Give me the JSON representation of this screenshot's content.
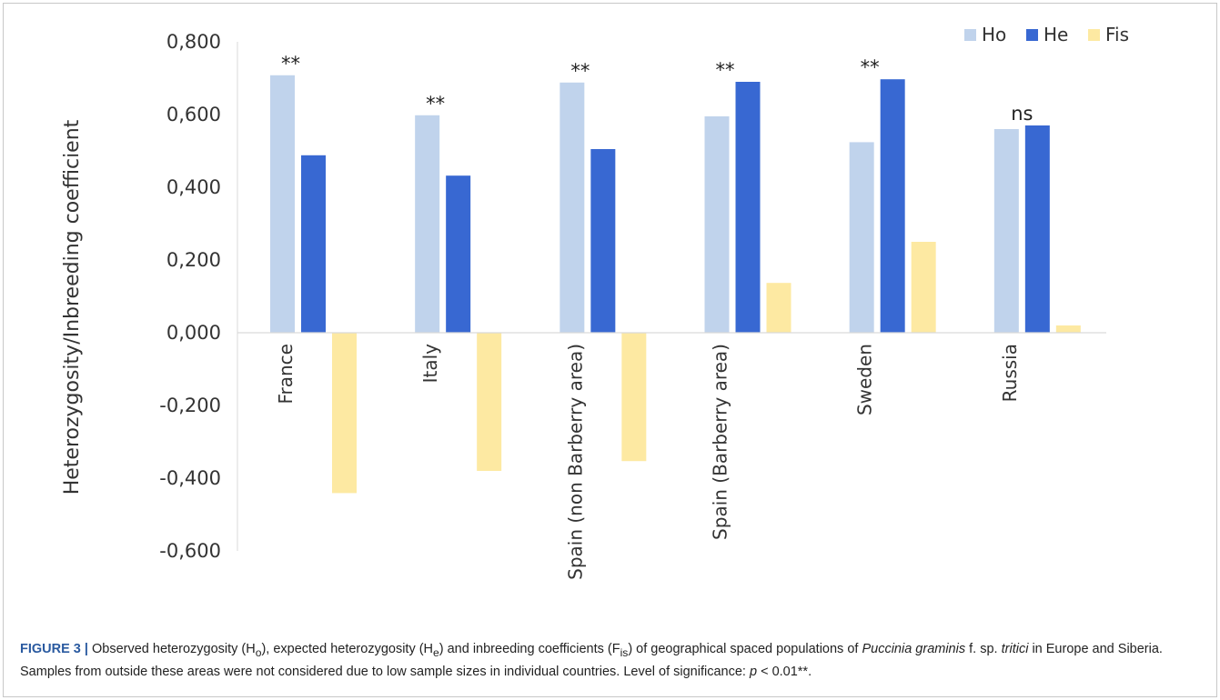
{
  "chart_data": {
    "type": "bar",
    "ylabel": "Heterozygosity/Inbreeding coefficient",
    "xlabel": "",
    "ylim": [
      -0.6,
      0.8
    ],
    "y_ticks": [
      0.8,
      0.6,
      0.4,
      0.2,
      0.0,
      -0.2,
      -0.4,
      -0.6
    ],
    "y_tick_labels": [
      "0,800",
      "0,600",
      "0,400",
      "0,200",
      "0,000",
      "-0,200",
      "-0,400",
      "-0,600"
    ],
    "grid": false,
    "legend_position": "top-right",
    "categories": [
      "France",
      "Italy",
      "Spain (non Barberry area)",
      "Spain (Barberry area)",
      "Sweden",
      "Russia"
    ],
    "series": [
      {
        "name": "Ho",
        "color": "#c0d3ec",
        "values": [
          0.708,
          0.598,
          0.688,
          0.595,
          0.524,
          0.56
        ]
      },
      {
        "name": "He",
        "color": "#3868d2",
        "values": [
          0.488,
          0.432,
          0.505,
          0.69,
          0.697,
          0.57
        ]
      },
      {
        "name": "Fis",
        "color": "#fde9a2",
        "values": [
          -0.441,
          -0.38,
          -0.353,
          0.137,
          0.25,
          0.02
        ]
      }
    ],
    "annotations": [
      "**",
      "**",
      "**",
      "**",
      "**",
      "ns"
    ]
  },
  "caption": {
    "label": "FIGURE 3",
    "separator": "|",
    "part1": "Observed heterozygosity (H",
    "sub_o": "o",
    "part2": "), expected heterozygosity (H",
    "sub_e": "e",
    "part3": ") and inbreeding coefficients (F",
    "sub_is": "is",
    "part4": ") of geographical spaced populations of ",
    "species": "Puccinia graminis",
    "part5": " f. sp. ",
    "forma": "tritici",
    "part6": " in Europe and Siberia. Samples from outside these areas were not considered due to low sample sizes in individual countries. Level of significance: ",
    "p_symbol": "p",
    "part7": " < 0.01**."
  }
}
